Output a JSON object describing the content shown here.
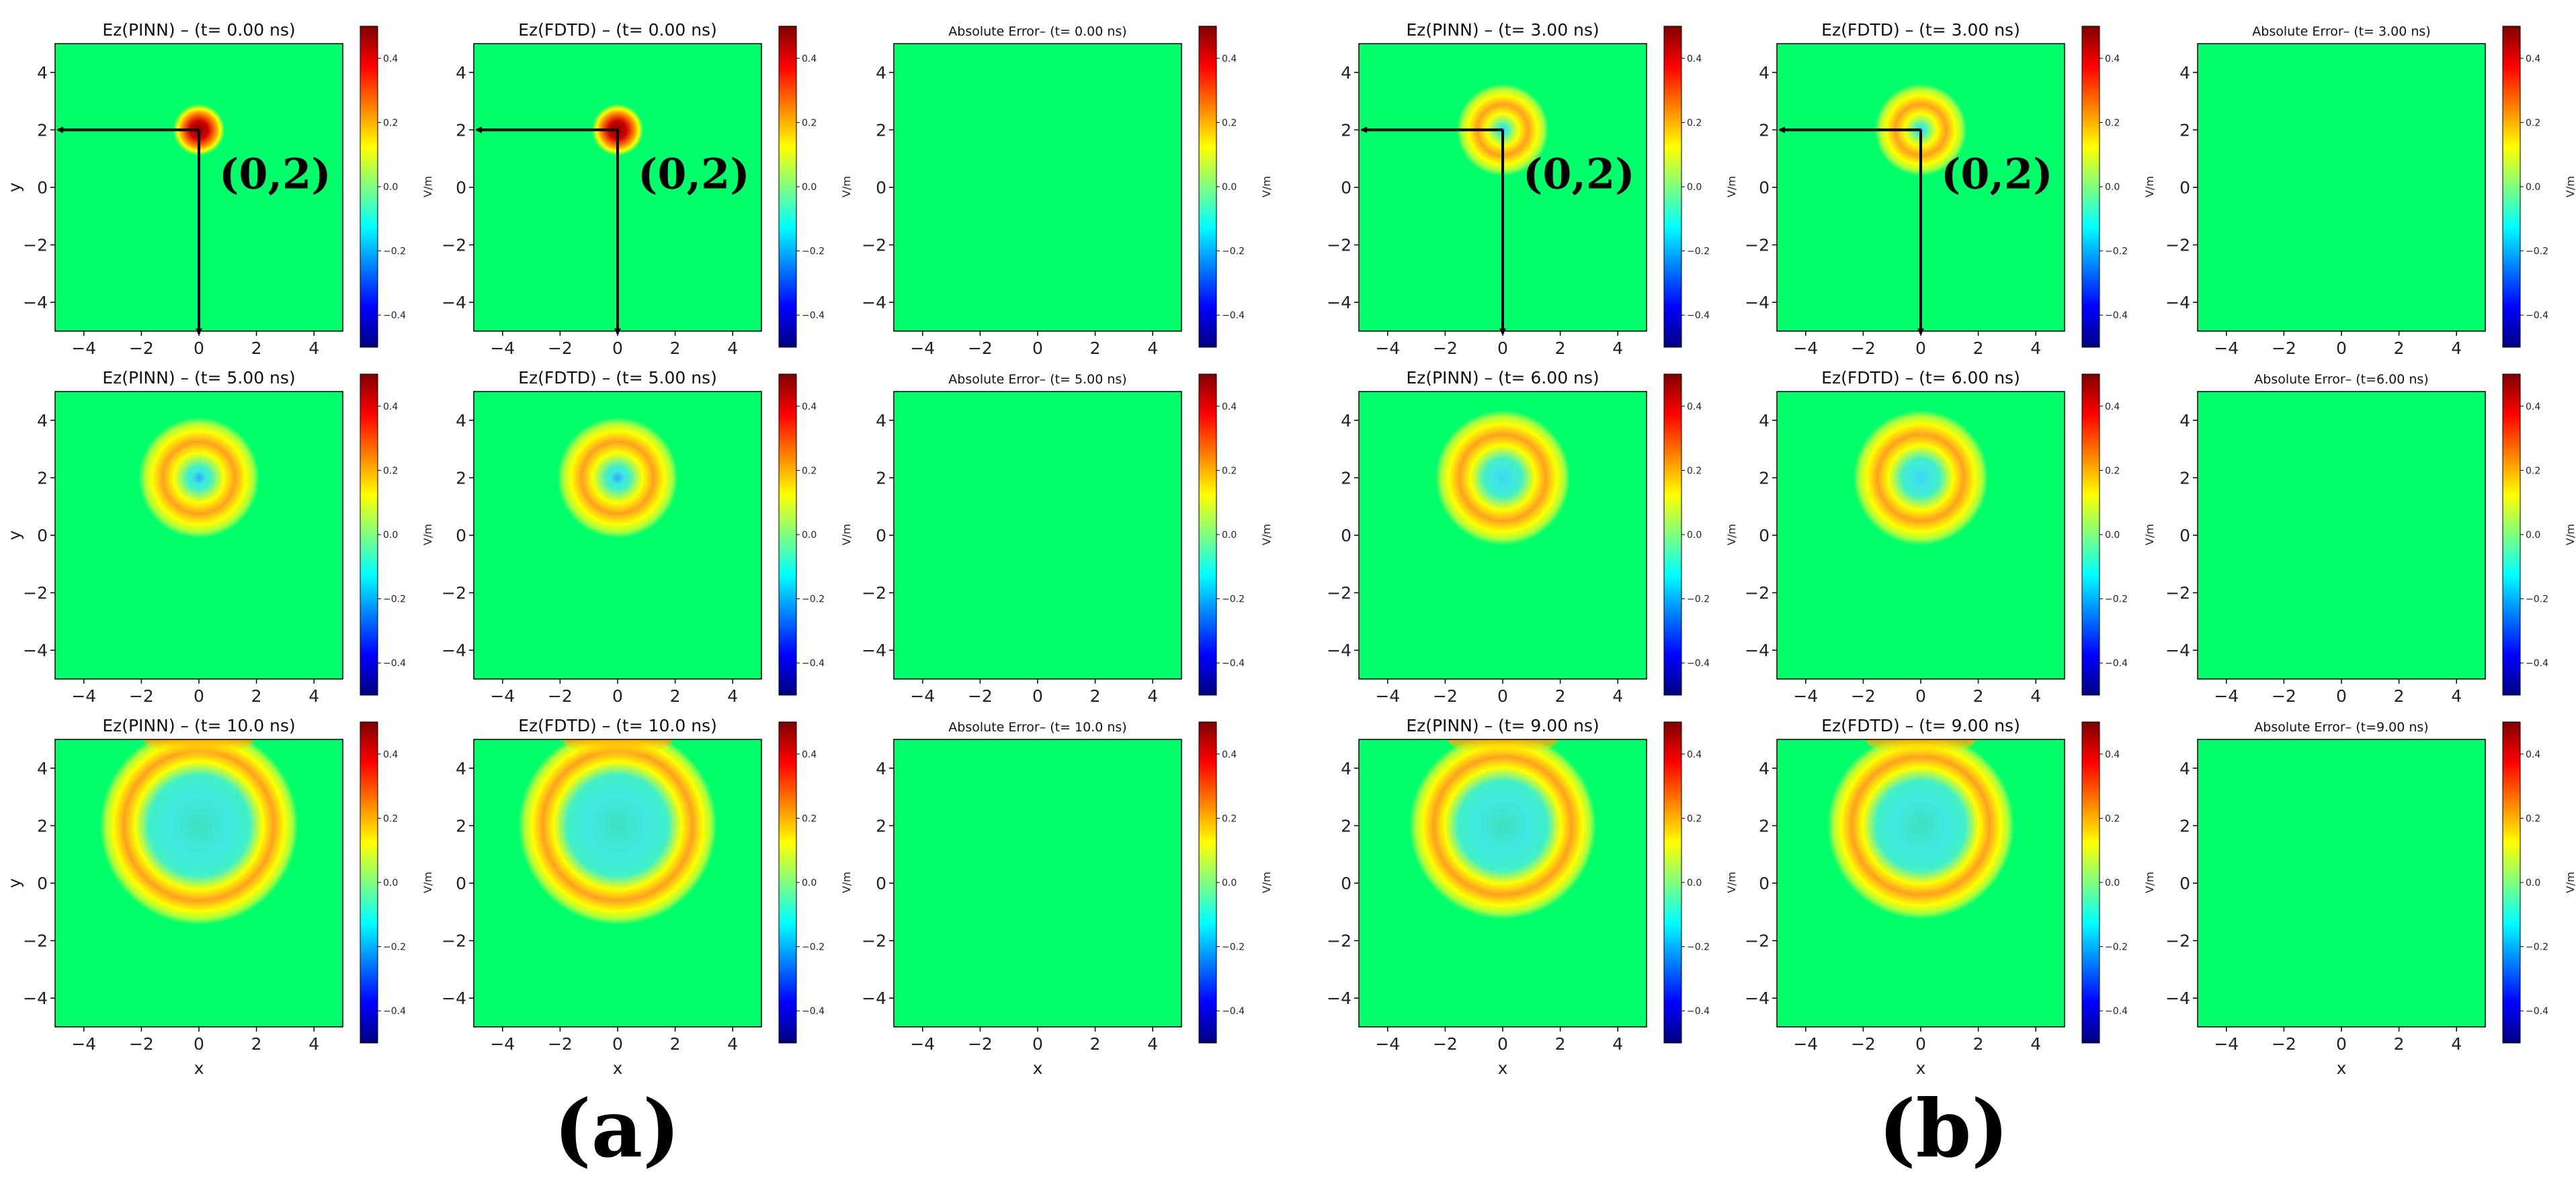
{
  "figure_labels": [
    "(a)",
    "(b)"
  ],
  "point_label": "(0,2)",
  "colorbar": {
    "unit": "V/m",
    "ticks": [
      0.4,
      0.2,
      0.0,
      -0.2,
      -0.4
    ],
    "tick_labels": [
      "0.4",
      "0.2",
      "0.0",
      "−0.2",
      "−0.4"
    ],
    "range": [
      -0.5,
      0.5
    ],
    "colormap": "jet",
    "colors": [
      "#00007f",
      "#0000ff",
      "#007fff",
      "#00ffff",
      "#7fff7f",
      "#ffff00",
      "#ff7f00",
      "#ff0000",
      "#7f0000"
    ]
  },
  "axes": {
    "xlabel": "x",
    "ylabel": "y",
    "xlim": [
      -5,
      5
    ],
    "ylim": [
      -5,
      5
    ],
    "x_ticks": [
      -4,
      -2,
      0,
      2,
      4
    ],
    "y_ticks": [
      4,
      2,
      0,
      -2,
      -4
    ],
    "x_tick_labels": [
      "−4",
      "−2",
      "0",
      "2",
      "4"
    ],
    "y_tick_labels": [
      "4",
      "2",
      "0",
      "−2",
      "−4"
    ]
  },
  "chart_data": [
    {
      "type": "heatmap",
      "panel": "(a)",
      "row": 0,
      "title": "Ez(PINN) – (t= 0.00 ns)",
      "field": "Ez",
      "source": "PINN",
      "time_ns": 0.0,
      "source_point": [
        0,
        2
      ],
      "wave_radius": 0.0,
      "annotated": true,
      "show_ylabel": true,
      "show_xlabel": false
    },
    {
      "type": "heatmap",
      "panel": "(a)",
      "row": 0,
      "title": "Ez(FDTD) – (t= 0.00 ns)",
      "field": "Ez",
      "source": "FDTD",
      "time_ns": 0.0,
      "source_point": [
        0,
        2
      ],
      "wave_radius": 0.0,
      "annotated": true,
      "show_ylabel": false,
      "show_xlabel": false
    },
    {
      "type": "heatmap",
      "panel": "(a)",
      "row": 0,
      "title": "Absolute Error– (t= 0.00 ns)",
      "field": "Absolute Error",
      "source": "error",
      "time_ns": 0.0,
      "source_point": [
        0,
        2
      ],
      "wave_radius": 0.0,
      "annotated": false,
      "show_ylabel": false,
      "show_xlabel": false
    },
    {
      "type": "heatmap",
      "panel": "(b)",
      "row": 0,
      "title": "Ez(PINN) – (t= 3.00 ns)",
      "field": "Ez",
      "source": "PINN",
      "time_ns": 3.0,
      "source_point": [
        0,
        2
      ],
      "wave_radius": 0.75,
      "annotated": true,
      "show_ylabel": false,
      "show_xlabel": false
    },
    {
      "type": "heatmap",
      "panel": "(b)",
      "row": 0,
      "title": "Ez(FDTD) – (t= 3.00 ns)",
      "field": "Ez",
      "source": "FDTD",
      "time_ns": 3.0,
      "source_point": [
        0,
        2
      ],
      "wave_radius": 0.75,
      "annotated": true,
      "show_ylabel": false,
      "show_xlabel": false
    },
    {
      "type": "heatmap",
      "panel": "(b)",
      "row": 0,
      "title": "Absolute Error– (t= 3.00 ns)",
      "field": "Absolute Error",
      "source": "error",
      "time_ns": 3.0,
      "source_point": [
        0,
        2
      ],
      "wave_radius": 0.75,
      "annotated": false,
      "show_ylabel": false,
      "show_xlabel": false
    },
    {
      "type": "heatmap",
      "panel": "(a)",
      "row": 1,
      "title": "Ez(PINN) – (t= 5.00 ns)",
      "field": "Ez",
      "source": "PINN",
      "time_ns": 5.0,
      "source_point": [
        0,
        2
      ],
      "wave_radius": 1.25,
      "annotated": false,
      "show_ylabel": true,
      "show_xlabel": false
    },
    {
      "type": "heatmap",
      "panel": "(a)",
      "row": 1,
      "title": "Ez(FDTD) – (t= 5.00 ns)",
      "field": "Ez",
      "source": "FDTD",
      "time_ns": 5.0,
      "source_point": [
        0,
        2
      ],
      "wave_radius": 1.25,
      "annotated": false,
      "show_ylabel": false,
      "show_xlabel": false
    },
    {
      "type": "heatmap",
      "panel": "(a)",
      "row": 1,
      "title": "Absolute Error– (t= 5.00 ns)",
      "field": "Absolute Error",
      "source": "error",
      "time_ns": 5.0,
      "source_point": [
        0,
        2
      ],
      "wave_radius": 1.25,
      "annotated": false,
      "show_ylabel": false,
      "show_xlabel": false
    },
    {
      "type": "heatmap",
      "panel": "(b)",
      "row": 1,
      "title": "Ez(PINN) – (t= 6.00 ns)",
      "field": "Ez",
      "source": "PINN",
      "time_ns": 6.0,
      "source_point": [
        0,
        2
      ],
      "wave_radius": 1.5,
      "annotated": false,
      "show_ylabel": false,
      "show_xlabel": false
    },
    {
      "type": "heatmap",
      "panel": "(b)",
      "row": 1,
      "title": "Ez(FDTD) – (t= 6.00 ns)",
      "field": "Ez",
      "source": "FDTD",
      "time_ns": 6.0,
      "source_point": [
        0,
        2
      ],
      "wave_radius": 1.5,
      "annotated": false,
      "show_ylabel": false,
      "show_xlabel": false
    },
    {
      "type": "heatmap",
      "panel": "(b)",
      "row": 1,
      "title": "Absolute Error– (t=6.00 ns)",
      "field": "Absolute Error",
      "source": "error",
      "time_ns": 6.0,
      "source_point": [
        0,
        2
      ],
      "wave_radius": 1.5,
      "annotated": false,
      "show_ylabel": false,
      "show_xlabel": false
    },
    {
      "type": "heatmap",
      "panel": "(a)",
      "row": 2,
      "title": "Ez(PINN) – (t= 10.0 ns)",
      "field": "Ez",
      "source": "PINN",
      "time_ns": 10.0,
      "source_point": [
        0,
        2
      ],
      "wave_radius": 2.6,
      "annotated": false,
      "show_ylabel": true,
      "show_xlabel": true
    },
    {
      "type": "heatmap",
      "panel": "(a)",
      "row": 2,
      "title": "Ez(FDTD) – (t= 10.0 ns)",
      "field": "Ez",
      "source": "FDTD",
      "time_ns": 10.0,
      "source_point": [
        0,
        2
      ],
      "wave_radius": 2.6,
      "annotated": false,
      "show_ylabel": false,
      "show_xlabel": true
    },
    {
      "type": "heatmap",
      "panel": "(a)",
      "row": 2,
      "title": "Absolute Error– (t= 10.0 ns)",
      "field": "Absolute Error",
      "source": "error",
      "time_ns": 10.0,
      "source_point": [
        0,
        2
      ],
      "wave_radius": 2.6,
      "annotated": false,
      "show_ylabel": false,
      "show_xlabel": true
    },
    {
      "type": "heatmap",
      "panel": "(b)",
      "row": 2,
      "title": "Ez(PINN) – (t= 9.00 ns)",
      "field": "Ez",
      "source": "PINN",
      "time_ns": 9.0,
      "source_point": [
        0,
        2
      ],
      "wave_radius": 2.4,
      "annotated": false,
      "show_ylabel": false,
      "show_xlabel": true
    },
    {
      "type": "heatmap",
      "panel": "(b)",
      "row": 2,
      "title": "Ez(FDTD) – (t= 9.00 ns)",
      "field": "Ez",
      "source": "FDTD",
      "time_ns": 9.0,
      "source_point": [
        0,
        2
      ],
      "wave_radius": 2.4,
      "annotated": false,
      "show_ylabel": false,
      "show_xlabel": true
    },
    {
      "type": "heatmap",
      "panel": "(b)",
      "row": 2,
      "title": "Absolute Error– (t=9.00 ns)",
      "field": "Absolute Error",
      "source": "error",
      "time_ns": 9.0,
      "source_point": [
        0,
        2
      ],
      "wave_radius": 2.4,
      "annotated": false,
      "show_ylabel": false,
      "show_xlabel": true
    }
  ]
}
